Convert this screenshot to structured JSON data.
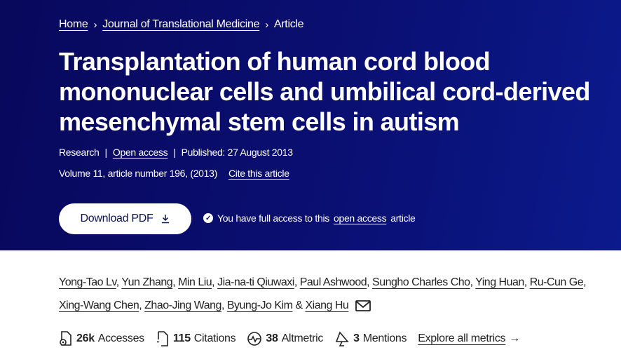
{
  "breadcrumb": {
    "items": [
      "Home",
      "Journal of Translational Medicine"
    ],
    "current": "Article"
  },
  "title": "Transplantation of human cord blood mononuclear cells and umbilical cord-derived mesenchymal stem cells in autism",
  "meta": {
    "type": "Research",
    "access": "Open access",
    "published": "Published: 27 August 2013",
    "volume": "Volume 11, article number 196, (2013)",
    "cite": "Cite this article"
  },
  "download": {
    "label": "Download PDF",
    "icon": "download-icon"
  },
  "access_note": {
    "prefix": "You have full access to this",
    "link": "open access",
    "suffix": "article"
  },
  "authors": [
    "Yong-Tao Lv",
    "Yun Zhang",
    "Min Liu",
    "Jia-na-ti Qiuwaxi",
    "Paul Ashwood",
    "Sungho Charles Cho",
    "Ying Huan",
    "Ru-Cun Ge",
    "Xing-Wang Chen",
    "Zhao-Jing Wang",
    "Byung-Jo Kim",
    "Xiang Hu"
  ],
  "metrics": [
    {
      "value": "26k",
      "label": "Accesses",
      "icon": "accesses-icon"
    },
    {
      "value": "115",
      "label": "Citations",
      "icon": "citations-icon"
    },
    {
      "value": "38",
      "label": "Altmetric",
      "icon": "altmetric-icon"
    },
    {
      "value": "3",
      "label": "Mentions",
      "icon": "mentions-icon"
    }
  ],
  "explore": "Explore all metrics",
  "colors": {
    "header_bg": "#0a0f72",
    "text_on_header": "#ffffff"
  }
}
